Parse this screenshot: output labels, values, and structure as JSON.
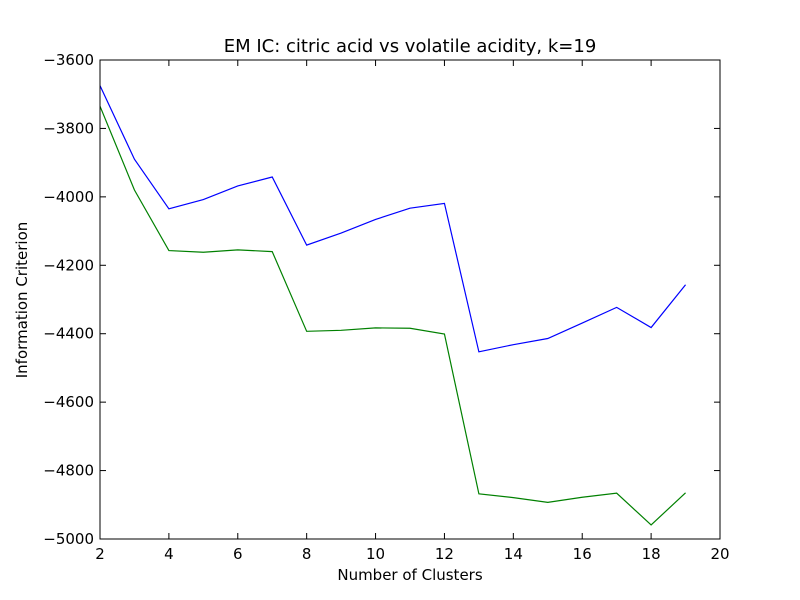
{
  "chart_data": {
    "type": "line",
    "title": "EM IC: citric acid vs volatile acidity, k=19",
    "xlabel": "Number of Clusters",
    "ylabel": "Information Criterion",
    "xlim": [
      2,
      20
    ],
    "ylim": [
      -5000,
      -3600
    ],
    "xticks": [
      2,
      4,
      6,
      8,
      10,
      12,
      14,
      16,
      18,
      20
    ],
    "yticks": [
      -5000,
      -4800,
      -4600,
      -4400,
      -4200,
      -4000,
      -3800,
      -3600
    ],
    "x": [
      2,
      3,
      4,
      5,
      6,
      7,
      8,
      9,
      10,
      11,
      12,
      13,
      14,
      15,
      16,
      17,
      18,
      19
    ],
    "series": [
      {
        "color": "#0000ff",
        "values": [
          -3675,
          -3890,
          -4035,
          -4008,
          -3968,
          -3942,
          -4141,
          -4106,
          -4066,
          -4033,
          -4019,
          -4453,
          -4432,
          -4414,
          -4369,
          -4323,
          -4382,
          -4257
        ]
      },
      {
        "color": "#008000",
        "values": [
          -3735,
          -3980,
          -4157,
          -4162,
          -4155,
          -4160,
          -4393,
          -4390,
          -4383,
          -4384,
          -4401,
          -4868,
          -4879,
          -4893,
          -4878,
          -4866,
          -4959,
          -4865
        ]
      }
    ],
    "grid": false,
    "legend": "none"
  }
}
